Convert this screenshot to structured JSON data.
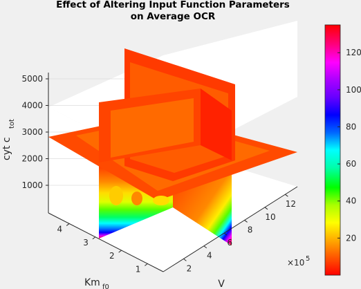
{
  "chart_data": {
    "type": "slice",
    "title_line1": "Effect of Altering Input Function Parameters",
    "title_line2": "on Average OCR",
    "xlabel": "V",
    "ylabel_main": "Km",
    "ylabel_sub": "f0",
    "zlabel_main": "cyt c",
    "zlabel_sub": "tot",
    "x_exponent_base": "×10",
    "x_exponent_power": "5",
    "x_ticks": [
      "2",
      "4",
      "6",
      "8",
      "10",
      "12"
    ],
    "y_ticks": [
      "1",
      "2",
      "3",
      "4"
    ],
    "z_ticks": [
      "1000",
      "2000",
      "3000",
      "4000",
      "5000"
    ],
    "colorbar_ticks": [
      "20",
      "40",
      "60",
      "80",
      "100",
      "120"
    ],
    "colorbar_range": [
      0,
      135
    ],
    "colormap": [
      "#ff0000",
      "#ff5500",
      "#ffaa00",
      "#ffff00",
      "#aaff00",
      "#00ff00",
      "#00ffaa",
      "#00ffff",
      "#0066ff",
      "#0000ff",
      "#6600ff",
      "#aa00ff",
      "#ff00ff",
      "#ff0080",
      "#ff0000"
    ],
    "grid": true,
    "view": "3-D isometric"
  }
}
